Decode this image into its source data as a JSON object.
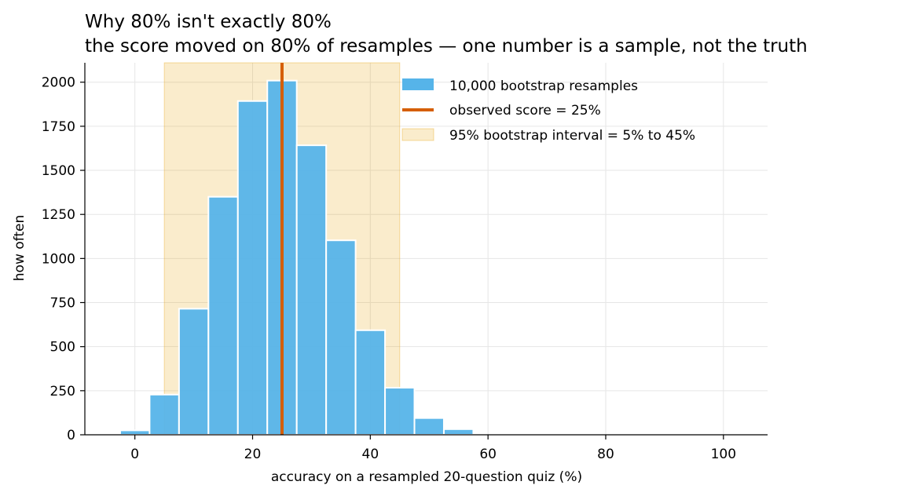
{
  "chart_data": {
    "type": "bar",
    "title": "Why 80% isn't exactly 80%",
    "subtitle": "the score moved on 80% of resamples — one number is a sample, not the truth",
    "xlabel": "accuracy on a resampled 20-question quiz (%)",
    "ylabel": "how often",
    "xlim": [
      -8.5,
      107.5
    ],
    "ylim": [
      0,
      2110
    ],
    "xticks": [
      0,
      20,
      40,
      60,
      80,
      100
    ],
    "yticks": [
      0,
      250,
      500,
      750,
      1000,
      1250,
      1500,
      1750,
      2000
    ],
    "grid": true,
    "legend_position": "top-right",
    "bin_width": 5,
    "bins": [
      {
        "x": 0,
        "value": 25
      },
      {
        "x": 5,
        "value": 228
      },
      {
        "x": 10,
        "value": 715
      },
      {
        "x": 15,
        "value": 1350
      },
      {
        "x": 20,
        "value": 1893
      },
      {
        "x": 25,
        "value": 2009
      },
      {
        "x": 30,
        "value": 1642
      },
      {
        "x": 35,
        "value": 1103
      },
      {
        "x": 40,
        "value": 593
      },
      {
        "x": 45,
        "value": 267
      },
      {
        "x": 50,
        "value": 95
      },
      {
        "x": 55,
        "value": 32
      }
    ],
    "observed_score": 25,
    "interval": [
      5,
      45
    ],
    "legend": [
      {
        "label": "10,000 bootstrap resamples",
        "kind": "bar",
        "color": "#56B4E9"
      },
      {
        "label": "observed score = 25%",
        "kind": "line",
        "color": "#D55E00"
      },
      {
        "label": "95% bootstrap interval = 5% to 45%",
        "kind": "band",
        "color": "#E69F00"
      }
    ],
    "colors": {
      "bars": "#56B4E9",
      "observed_line": "#D55E00",
      "interval_band": "#E69F00"
    }
  }
}
